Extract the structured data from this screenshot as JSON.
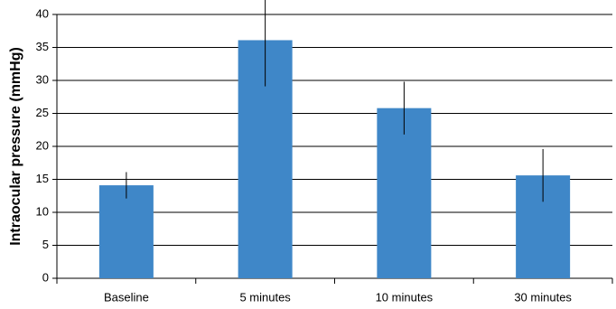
{
  "chart_data": {
    "type": "bar",
    "y_label": "Intraocular pressure (mmHg)",
    "categories": [
      "Baseline",
      "5 minutes",
      "10 minutes",
      "30 minutes"
    ],
    "values": [
      14.1,
      36.1,
      25.8,
      15.6
    ],
    "errors": [
      2,
      7,
      4,
      4
    ],
    "color": "#3f87c8",
    "ylim": [
      0,
      40
    ],
    "yticks": [
      0,
      5,
      10,
      15,
      20,
      25,
      30,
      35,
      40
    ],
    "grid": true
  }
}
